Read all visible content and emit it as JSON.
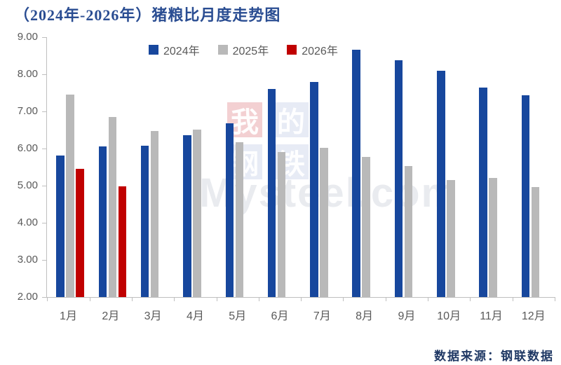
{
  "title": "（2024年-2026年）猪粮比月度走势图",
  "source": "数据来源：钢联数据",
  "watermark": {
    "chars": [
      "我",
      "的",
      "钢",
      "铁"
    ],
    "latin": "Mysteel.com"
  },
  "colors": {
    "series_2024": "#17479d",
    "series_2025": "#b9b9b9",
    "series_2026": "#c00000",
    "title_text": "#2a4d92",
    "axis_text": "#595959",
    "axis_line": "#bfbfbf",
    "source_text": "#1f3864",
    "watermark_red_cell": "rgba(200,40,50,0.22)",
    "watermark_blue_cell": "rgba(70,100,180,0.13)"
  },
  "chart_data": {
    "type": "bar",
    "title": "（2024年-2026年）猪粮比月度走势图",
    "categories": [
      "1月",
      "2月",
      "3月",
      "4月",
      "5月",
      "6月",
      "7月",
      "8月",
      "9月",
      "10月",
      "11月",
      "12月"
    ],
    "y_ticks": [
      "9.00",
      "8.00",
      "7.00",
      "6.00",
      "5.00",
      "4.00",
      "3.00",
      "2.00"
    ],
    "ylim": [
      2.0,
      9.0
    ],
    "grid": false,
    "legend_position": "top",
    "xlabel": "",
    "ylabel": "",
    "series": [
      {
        "name": "2024年",
        "color": "#17479d",
        "values": [
          5.82,
          6.05,
          6.07,
          6.36,
          6.67,
          7.6,
          7.8,
          8.66,
          8.37,
          8.09,
          7.65,
          7.44
        ]
      },
      {
        "name": "2025年",
        "color": "#b9b9b9",
        "values": [
          7.45,
          6.84,
          6.47,
          6.51,
          6.17,
          5.9,
          6.02,
          5.77,
          5.53,
          5.15,
          5.2,
          4.97
        ]
      },
      {
        "name": "2026年",
        "color": "#c00000",
        "values": [
          5.45,
          4.98,
          null,
          null,
          null,
          null,
          null,
          null,
          null,
          null,
          null,
          null
        ]
      }
    ]
  }
}
